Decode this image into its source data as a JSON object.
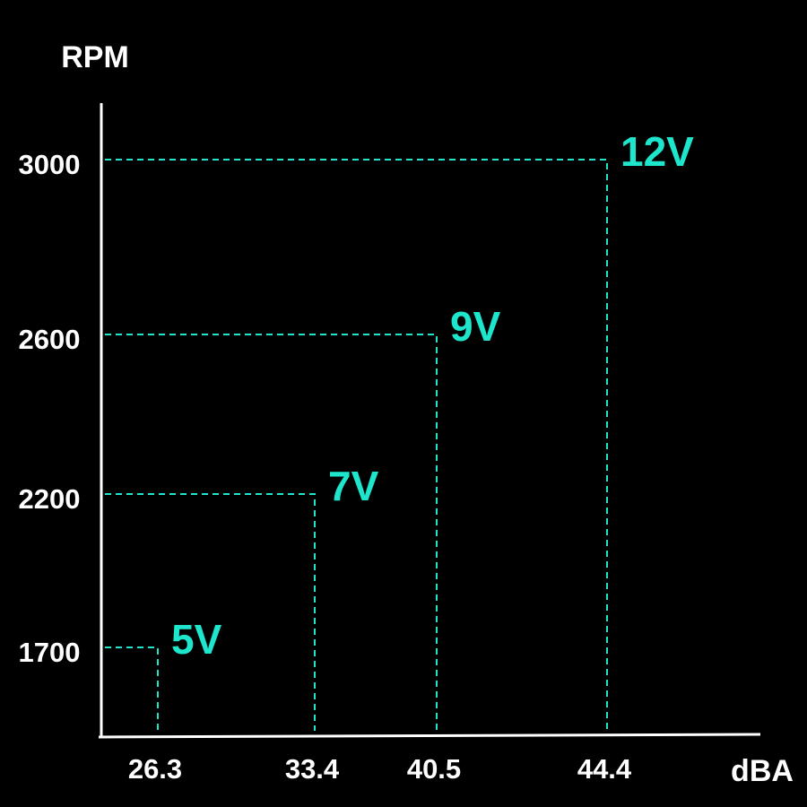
{
  "chart_data": {
    "type": "ladder",
    "y_label": "RPM",
    "x_label": "dBA",
    "x": [
      26.3,
      33.4,
      40.5,
      44.4
    ],
    "xticks": [
      26.3,
      33.4,
      40.5,
      44.4
    ],
    "yticks": [
      1700,
      2200,
      2600,
      3000
    ],
    "series": [
      {
        "values": [
          1700,
          2200,
          2600,
          3000
        ],
        "color": "#1de6cd",
        "labels": [
          "5V",
          "7V",
          "9V",
          "12V"
        ]
      }
    ]
  }
}
